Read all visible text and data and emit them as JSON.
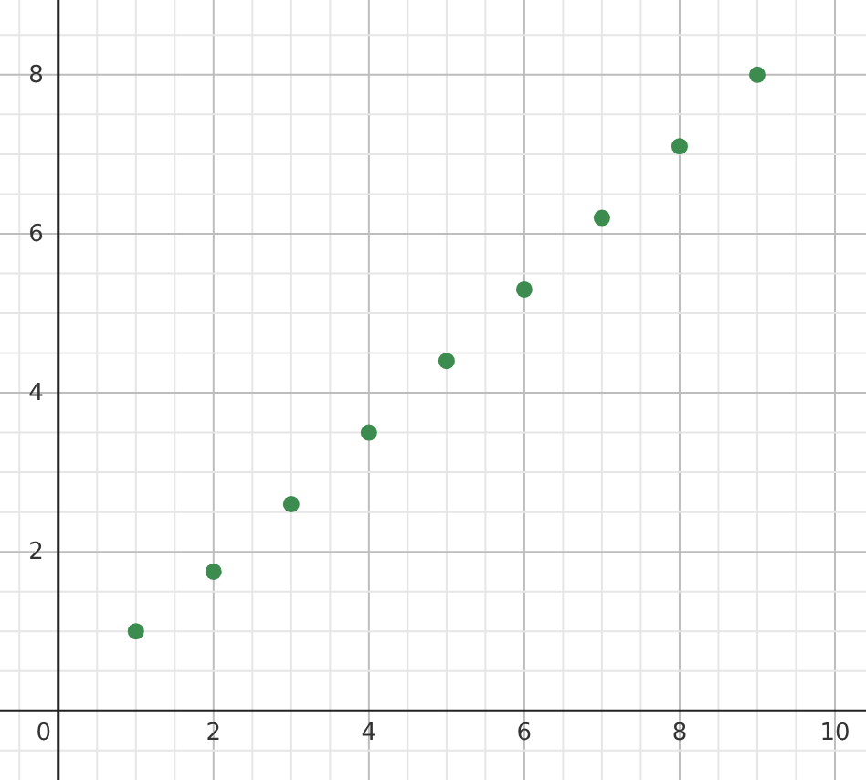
{
  "chart_data": {
    "type": "scatter",
    "x": [
      1,
      2,
      3,
      4,
      5,
      6,
      7,
      8,
      9
    ],
    "series": [
      {
        "color": "#3d8c4f",
        "values": [
          1,
          1.75,
          2.6,
          3.5,
          4.4,
          5.3,
          6.2,
          7.1,
          8
        ]
      }
    ],
    "xlim": [
      -0.75,
      10.4
    ],
    "ylim": [
      -0.87,
      8.94
    ],
    "xticks": [
      {
        "value": -0.5,
        "label": null
      },
      0,
      {
        "value": 0.5,
        "label": null
      },
      {
        "value": 1,
        "label": null
      },
      {
        "value": 1.5,
        "label": null
      },
      2,
      {
        "value": 2.5,
        "label": null
      },
      {
        "value": 3,
        "label": null
      },
      {
        "value": 3.5,
        "label": null
      },
      4,
      {
        "value": 4.5,
        "label": null
      },
      {
        "value": 5,
        "label": null
      },
      {
        "value": 5.5,
        "label": null
      },
      6,
      {
        "value": 6.5,
        "label": null
      },
      {
        "value": 7,
        "label": null
      },
      {
        "value": 7.5,
        "label": null
      },
      8,
      {
        "value": 8.5,
        "label": null
      },
      {
        "value": 9,
        "label": null
      },
      {
        "value": 9.5,
        "label": null
      },
      10
    ],
    "yticks": [
      {
        "value": -0.5,
        "label": null
      },
      {
        "value": 0.5,
        "label": null
      },
      {
        "value": 1,
        "label": null
      },
      {
        "value": 1.5,
        "label": null
      },
      2,
      {
        "value": 2.5,
        "label": null
      },
      {
        "value": 3,
        "label": null
      },
      {
        "value": 3.5,
        "label": null
      },
      4,
      {
        "value": 4.5,
        "label": null
      },
      {
        "value": 5,
        "label": null
      },
      {
        "value": 5.5,
        "label": null
      },
      6,
      {
        "value": 6.5,
        "label": null
      },
      {
        "value": 7,
        "label": null
      },
      {
        "value": 7.5,
        "label": null
      },
      8,
      {
        "value": 8.5,
        "label": null
      }
    ],
    "grid": true,
    "marker": "circle"
  }
}
